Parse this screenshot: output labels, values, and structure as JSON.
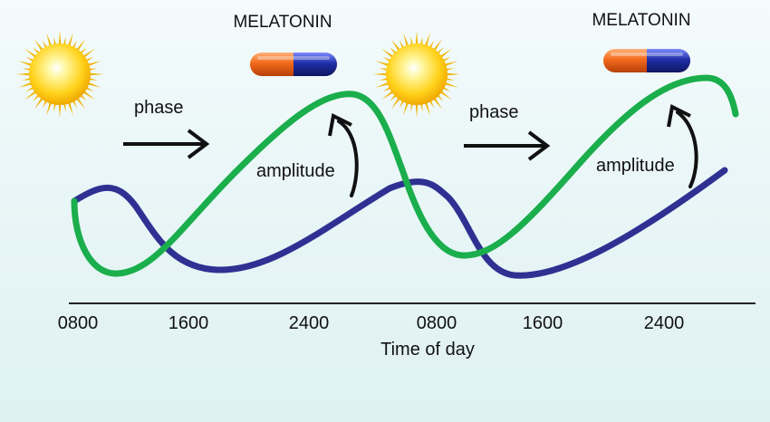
{
  "labels": {
    "melatonin_left": "MELATONIN",
    "melatonin_right": "MELATONIN",
    "phase_left": "phase",
    "phase_right": "phase",
    "amplitude_left": "amplitude",
    "amplitude_right": "amplitude"
  },
  "axis": {
    "xlabel": "Time of day",
    "ticks": [
      "0800",
      "1600",
      "2400",
      "0800",
      "1600",
      "2400"
    ]
  },
  "colors": {
    "green_curve": "#1aae4c",
    "blue_curve": "#2e3192",
    "axis": "#222222",
    "arrow": "#111111",
    "sun_core": "#fff36a",
    "sun_rays": "#f0b400",
    "pill_orange": "#f26a1b",
    "pill_blue": "#1f2fa8"
  },
  "icons": [
    "sun-icon",
    "melatonin-pill-icon",
    "right-arrow-icon",
    "curved-arrow-icon"
  ]
}
